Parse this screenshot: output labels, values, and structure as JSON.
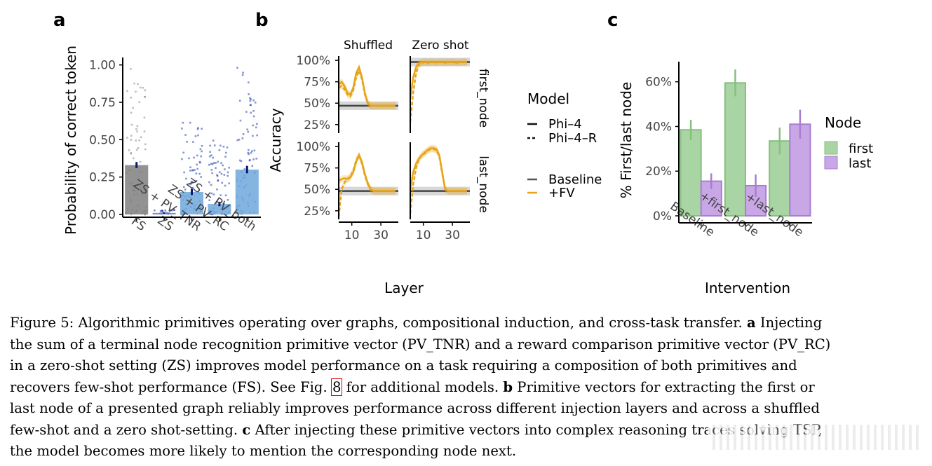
{
  "panels": {
    "a": {
      "label": "a"
    },
    "b": {
      "label": "b"
    },
    "c": {
      "label": "c"
    }
  },
  "chart_data": [
    {
      "panel": "a",
      "type": "bar",
      "ylabel": "Probability of correct token",
      "xlabel": "",
      "ylim": [
        0,
        1.05
      ],
      "yticks": [
        0.0,
        0.25,
        0.5,
        0.75,
        1.0
      ],
      "ytick_labels": [
        "0.00",
        "0.25",
        "0.50",
        "0.75",
        "1.00"
      ],
      "categories": [
        "FS",
        "ZS",
        "ZS + PV_TNR",
        "ZS + PV_RC",
        "ZS + PV_both"
      ],
      "values": [
        0.33,
        0.01,
        0.15,
        0.07,
        0.3
      ],
      "errors": [
        0.02,
        0.005,
        0.02,
        0.015,
        0.025
      ],
      "colors": [
        "#7f7f7f",
        "#5b7fd6",
        "#6fa8dc",
        "#6fa8dc",
        "#6fa8dc"
      ],
      "point_colors": [
        "#888888",
        "#1f2e9e",
        "#1f3fae",
        "#1f3fae",
        "#1f3fae"
      ],
      "point_spread": [
        [
          0.0,
          0.98
        ],
        [
          0.0,
          0.03
        ],
        [
          0.0,
          0.62
        ],
        [
          0.0,
          0.5
        ],
        [
          0.0,
          0.99
        ]
      ]
    },
    {
      "panel": "b",
      "type": "line",
      "ylabel": "Accuracy",
      "xlabel": "Layer",
      "columns": [
        "Shuffled",
        "Zero shot"
      ],
      "rows": [
        "first_node",
        "last_node"
      ],
      "ylim": [
        0.15,
        1.05
      ],
      "yticks": [
        0.25,
        0.5,
        0.75,
        1.0
      ],
      "ytick_labels": [
        "25%",
        "50%",
        "75%",
        "100%"
      ],
      "xlim": [
        1,
        42
      ],
      "xticks": [
        10,
        30
      ],
      "xtick_labels": [
        "10",
        "30"
      ],
      "x": [
        1,
        3,
        5,
        7,
        9,
        11,
        13,
        15,
        17,
        19,
        21,
        23,
        25,
        27,
        29,
        31,
        33,
        35,
        37,
        39,
        40
      ],
      "baseline": {
        "shuffled_first": 0.47,
        "zero_first": 0.98,
        "shuffled_last": 0.48,
        "zero_last": 0.48
      },
      "series": [
        {
          "name": "Shuffled / first_node / Phi-4 +FV",
          "values": [
            0.72,
            0.75,
            0.7,
            0.62,
            0.6,
            0.68,
            0.85,
            0.92,
            0.8,
            0.62,
            0.5,
            0.47,
            0.47,
            0.47,
            0.47,
            0.47,
            0.47,
            0.47,
            0.47,
            0.47,
            0.47
          ]
        },
        {
          "name": "Shuffled / first_node / Phi-4-R +FV",
          "values": [
            0.68,
            0.7,
            0.66,
            0.6,
            0.58,
            0.65,
            0.8,
            0.88,
            0.78,
            0.6,
            0.5,
            0.47,
            0.47,
            0.47,
            0.47,
            0.47,
            0.47,
            0.47,
            0.47,
            0.47,
            0.47
          ]
        },
        {
          "name": "Zero shot / first_node / Phi-4 +FV",
          "values": [
            0.55,
            0.8,
            0.92,
            0.97,
            0.98,
            0.98,
            0.98,
            0.98,
            0.98,
            0.98,
            0.98,
            0.98,
            0.98,
            0.98,
            0.98,
            0.98,
            0.98,
            0.98,
            0.98,
            0.98,
            0.98
          ]
        },
        {
          "name": "Zero shot / first_node / Phi-4-R +FV",
          "values": [
            0.28,
            0.62,
            0.85,
            0.95,
            0.97,
            0.98,
            0.97,
            0.98,
            0.98,
            0.97,
            0.98,
            0.98,
            0.97,
            0.98,
            0.98,
            0.98,
            0.97,
            0.98,
            0.98,
            0.98,
            0.98
          ]
        },
        {
          "name": "Shuffled / last_node / Phi-4 +FV",
          "values": [
            0.6,
            0.62,
            0.63,
            0.62,
            0.64,
            0.7,
            0.82,
            0.9,
            0.82,
            0.68,
            0.57,
            0.5,
            0.48,
            0.48,
            0.48,
            0.48,
            0.48,
            0.48,
            0.48,
            0.48,
            0.48
          ]
        },
        {
          "name": "Shuffled / last_node / Phi-4-R +FV",
          "values": [
            0.18,
            0.5,
            0.58,
            0.62,
            0.65,
            0.72,
            0.84,
            0.9,
            0.8,
            0.66,
            0.56,
            0.5,
            0.48,
            0.48,
            0.48,
            0.48,
            0.48,
            0.48,
            0.48,
            0.48,
            0.48
          ]
        },
        {
          "name": "Zero shot / last_node / Phi-4 +FV",
          "values": [
            0.5,
            0.7,
            0.8,
            0.86,
            0.9,
            0.93,
            0.96,
            0.98,
            0.98,
            0.97,
            0.9,
            0.7,
            0.5,
            0.48,
            0.48,
            0.48,
            0.48,
            0.48,
            0.48,
            0.48,
            0.48
          ]
        },
        {
          "name": "Zero shot / last_node / Phi-4-R +FV",
          "values": [
            0.22,
            0.55,
            0.75,
            0.85,
            0.9,
            0.92,
            0.95,
            0.97,
            0.97,
            0.96,
            0.88,
            0.68,
            0.5,
            0.48,
            0.48,
            0.48,
            0.48,
            0.48,
            0.48,
            0.48,
            0.48
          ]
        }
      ],
      "legend": {
        "model_title": "Model",
        "model_items": [
          {
            "label": "Phi–4",
            "dash": "solid"
          },
          {
            "label": "Phi–4–R",
            "dash": "dashed"
          }
        ],
        "condition_items": [
          {
            "label": "Baseline",
            "color": "#555555"
          },
          {
            "label": "+FV",
            "color": "#e8a317"
          }
        ]
      }
    },
    {
      "panel": "c",
      "type": "bar",
      "ylabel": "% First/last node",
      "xlabel": "Intervention",
      "ylim": [
        0,
        0.69
      ],
      "yticks": [
        0,
        0.2,
        0.4,
        0.6
      ],
      "ytick_labels": [
        "0%",
        "20%",
        "40%",
        "60%"
      ],
      "categories": [
        "Baseline",
        "+first_node",
        "+last_node"
      ],
      "series": [
        {
          "name": "first",
          "values": [
            0.385,
            0.595,
            0.335
          ],
          "errors": [
            0.045,
            0.06,
            0.06
          ],
          "color": "#a9d4a3",
          "edge": "#86c07f"
        },
        {
          "name": "last",
          "values": [
            0.155,
            0.135,
            0.41
          ],
          "errors": [
            0.035,
            0.05,
            0.065
          ],
          "color": "#c9a7e6",
          "edge": "#a67ed2"
        }
      ],
      "legend": {
        "title": "Node",
        "items": [
          "first",
          "last"
        ]
      }
    }
  ],
  "caption": {
    "line1_a": "Figure 5: Algorithmic primitives operating over graphs, compositional induction, and cross-task transfer.",
    "line1_b": "a",
    "line1_c": "Injecting",
    "line2": "the sum of a terminal node recognition primitive vector (PV_TNR) and a reward comparison primitive vector (PV_RC)",
    "line3": "in a zero-shot setting (ZS) improves model performance on a task requiring a composition of both primitives and",
    "line4_a": "recovers few-shot performance (FS). See Fig.",
    "line4_ref": "8",
    "line4_b": "for additional models.",
    "line4_bold": "b",
    "line4_c": "Primitive vectors for extracting the first or",
    "line5": "last node of a presented graph reliably improves performance across different injection layers and across a shuffled",
    "line6_a": "few-shot and a zero shot-setting.",
    "line6_bold": "c",
    "line6_b": "After injecting these primitive vectors into complex reasoning traces solving TSP,",
    "line7": "the model becomes more likely to mention the corresponding node next."
  }
}
